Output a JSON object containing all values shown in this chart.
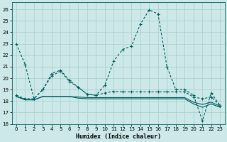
{
  "xlabel": "Humidex (Indice chaleur)",
  "bg_color": "#cce8e8",
  "grid_color": "#aacccc",
  "line_color": "#005f5f",
  "xlim": [
    -0.5,
    23.5
  ],
  "ylim": [
    16,
    26.6
  ],
  "yticks": [
    16,
    17,
    18,
    19,
    20,
    21,
    22,
    23,
    24,
    25,
    26
  ],
  "xticks": [
    0,
    1,
    2,
    3,
    4,
    5,
    6,
    7,
    8,
    9,
    10,
    11,
    12,
    13,
    14,
    15,
    16,
    17,
    18,
    19,
    20,
    21,
    22,
    23
  ],
  "line1_y": [
    23.0,
    21.2,
    18.2,
    19.0,
    20.4,
    20.7,
    19.8,
    19.2,
    18.6,
    18.5,
    19.4,
    21.5,
    22.5,
    22.8,
    24.7,
    25.95,
    25.6,
    21.0,
    19.0,
    19.0,
    18.5,
    16.3,
    18.7,
    17.6
  ],
  "line2_y": [
    18.5,
    18.2,
    18.2,
    19.0,
    20.2,
    20.6,
    19.7,
    19.2,
    18.6,
    18.5,
    18.7,
    18.85,
    18.8,
    18.8,
    18.8,
    18.8,
    18.8,
    18.8,
    18.8,
    18.8,
    18.35,
    18.2,
    18.35,
    17.6
  ],
  "line3_y": [
    18.4,
    18.15,
    18.1,
    18.4,
    18.4,
    18.4,
    18.4,
    18.35,
    18.3,
    18.3,
    18.3,
    18.3,
    18.3,
    18.3,
    18.3,
    18.3,
    18.3,
    18.3,
    18.3,
    18.3,
    17.9,
    17.7,
    17.9,
    17.55
  ],
  "line4_y": [
    18.4,
    18.1,
    18.1,
    18.4,
    18.4,
    18.4,
    18.4,
    18.25,
    18.2,
    18.2,
    18.2,
    18.2,
    18.2,
    18.2,
    18.2,
    18.2,
    18.2,
    18.2,
    18.2,
    18.2,
    17.75,
    17.45,
    17.75,
    17.45
  ]
}
